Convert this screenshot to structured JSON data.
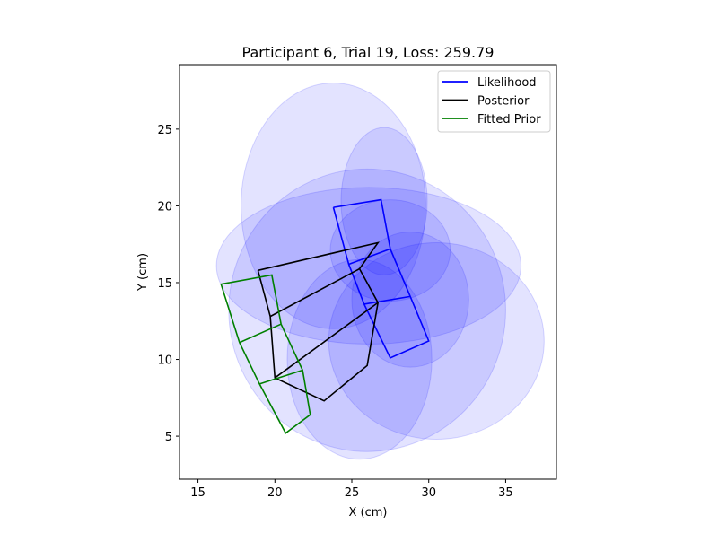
{
  "chart_data": {
    "type": "line",
    "title": "Participant 6, Trial 19, Loss: 259.79",
    "xlabel": "X (cm)",
    "ylabel": "Y (cm)",
    "xlim": [
      13.8,
      38.3
    ],
    "ylim": [
      2.2,
      29.2
    ],
    "xticks": [
      15,
      20,
      25,
      30,
      35
    ],
    "yticks": [
      5,
      10,
      15,
      20,
      25
    ],
    "grid": false,
    "legend_position": "top-right",
    "ellipses": [
      {
        "cx": 23.8,
        "cy": 20.0,
        "rx": 6.0,
        "ry": 8.0,
        "color": "#0000ff",
        "alpha": 0.11
      },
      {
        "cx": 27.1,
        "cy": 20.3,
        "rx": 2.8,
        "ry": 4.8,
        "color": "#0000ff",
        "alpha": 0.11
      },
      {
        "cx": 26.1,
        "cy": 16.1,
        "rx": 9.9,
        "ry": 5.1,
        "color": "#0000ff",
        "alpha": 0.11
      },
      {
        "cx": 26.0,
        "cy": 13.2,
        "rx": 9.0,
        "ry": 9.2,
        "color": "#0000ff",
        "alpha": 0.11
      },
      {
        "cx": 27.5,
        "cy": 17.1,
        "rx": 3.9,
        "ry": 3.3,
        "color": "#0000ff",
        "alpha": 0.11
      },
      {
        "cx": 28.8,
        "cy": 13.9,
        "rx": 3.8,
        "ry": 4.4,
        "color": "#0000ff",
        "alpha": 0.11
      },
      {
        "cx": 30.5,
        "cy": 11.2,
        "rx": 7.0,
        "ry": 6.4,
        "color": "#0000ff",
        "alpha": 0.11
      },
      {
        "cx": 25.5,
        "cy": 10.0,
        "rx": 4.7,
        "ry": 6.5,
        "color": "#0000ff",
        "alpha": 0.11
      }
    ],
    "series": [
      {
        "name": "Likelihood",
        "color": "#0000ff",
        "points": [
          [
            23.8,
            19.9
          ],
          [
            26.9,
            20.4
          ],
          [
            27.5,
            17.2
          ],
          [
            28.8,
            14.1
          ],
          [
            30.0,
            11.2
          ],
          [
            27.5,
            10.1
          ],
          [
            25.8,
            13.6
          ],
          [
            24.8,
            16.2
          ],
          [
            23.8,
            19.9
          ]
        ],
        "extra_segments": [
          [
            [
              24.8,
              16.2
            ],
            [
              27.5,
              17.2
            ]
          ],
          [
            [
              25.8,
              13.6
            ],
            [
              28.8,
              14.1
            ]
          ]
        ]
      },
      {
        "name": "Posterior",
        "color": "#000000",
        "points": [
          [
            18.9,
            15.8
          ],
          [
            26.7,
            17.6
          ],
          [
            25.5,
            15.9
          ],
          [
            26.7,
            13.7
          ],
          [
            26.0,
            9.6
          ],
          [
            23.2,
            7.3
          ],
          [
            20.0,
            8.8
          ],
          [
            19.7,
            12.8
          ],
          [
            18.9,
            15.8
          ]
        ],
        "extra_segments": [
          [
            [
              19.7,
              12.8
            ],
            [
              25.5,
              15.9
            ]
          ],
          [
            [
              20.0,
              8.8
            ],
            [
              26.7,
              13.7
            ]
          ]
        ]
      },
      {
        "name": "Fitted Prior",
        "color": "#008000",
        "points": [
          [
            16.5,
            14.9
          ],
          [
            19.8,
            15.5
          ],
          [
            20.4,
            12.3
          ],
          [
            21.8,
            9.3
          ],
          [
            22.3,
            6.4
          ],
          [
            20.7,
            5.2
          ],
          [
            19.0,
            8.4
          ],
          [
            17.7,
            11.1
          ],
          [
            16.5,
            14.9
          ]
        ],
        "extra_segments": [
          [
            [
              17.7,
              11.1
            ],
            [
              20.4,
              12.3
            ]
          ],
          [
            [
              19.0,
              8.4
            ],
            [
              21.8,
              9.3
            ]
          ]
        ]
      }
    ]
  }
}
